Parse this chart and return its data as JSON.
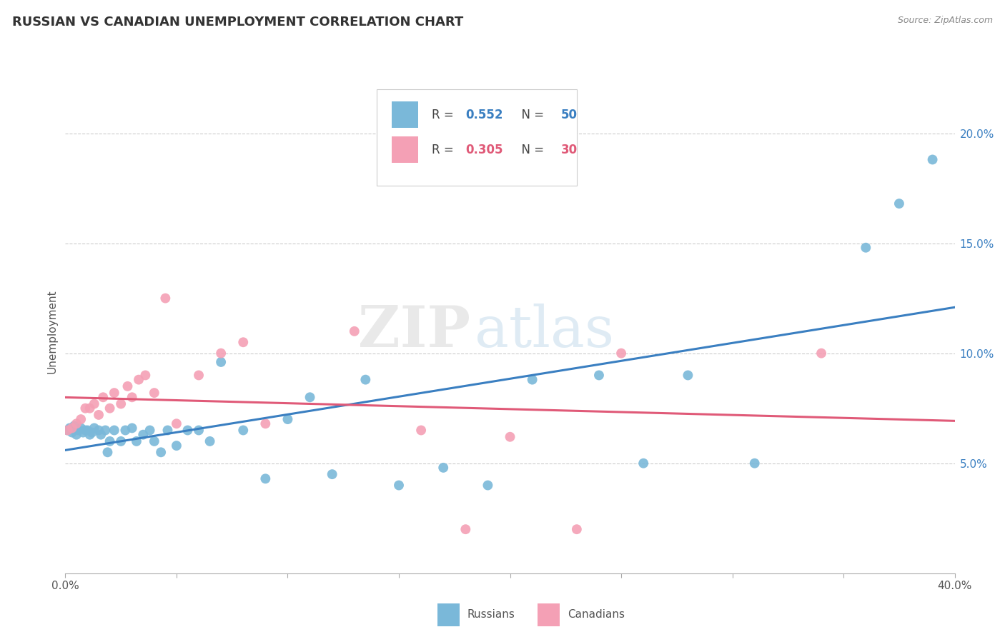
{
  "title": "RUSSIAN VS CANADIAN UNEMPLOYMENT CORRELATION CHART",
  "source": "Source: ZipAtlas.com",
  "ylabel": "Unemployment",
  "xlim": [
    0.0,
    0.4
  ],
  "ylim": [
    0.0,
    0.22
  ],
  "russian_color": "#7ab8d9",
  "canadian_color": "#f4a0b5",
  "russian_line_color": "#3a7fc1",
  "canadian_line_color": "#e05a78",
  "watermark_zip": "ZIP",
  "watermark_atlas": "atlas",
  "legend_r1": "0.552",
  "legend_n1": "50",
  "legend_r2": "0.305",
  "legend_n2": "30",
  "russians_x": [
    0.001,
    0.002,
    0.003,
    0.004,
    0.005,
    0.006,
    0.007,
    0.008,
    0.009,
    0.01,
    0.011,
    0.012,
    0.013,
    0.015,
    0.016,
    0.018,
    0.019,
    0.02,
    0.022,
    0.025,
    0.027,
    0.03,
    0.032,
    0.035,
    0.038,
    0.04,
    0.043,
    0.046,
    0.05,
    0.055,
    0.06,
    0.065,
    0.07,
    0.08,
    0.09,
    0.1,
    0.11,
    0.12,
    0.135,
    0.15,
    0.17,
    0.19,
    0.21,
    0.24,
    0.26,
    0.28,
    0.31,
    0.36,
    0.375,
    0.39
  ],
  "russians_y": [
    0.065,
    0.066,
    0.064,
    0.067,
    0.063,
    0.065,
    0.066,
    0.064,
    0.065,
    0.065,
    0.063,
    0.064,
    0.066,
    0.065,
    0.063,
    0.065,
    0.055,
    0.06,
    0.065,
    0.06,
    0.065,
    0.066,
    0.06,
    0.063,
    0.065,
    0.06,
    0.055,
    0.065,
    0.058,
    0.065,
    0.065,
    0.06,
    0.096,
    0.065,
    0.043,
    0.07,
    0.08,
    0.045,
    0.088,
    0.04,
    0.048,
    0.04,
    0.088,
    0.09,
    0.05,
    0.09,
    0.05,
    0.148,
    0.168,
    0.188
  ],
  "canadians_x": [
    0.001,
    0.003,
    0.005,
    0.007,
    0.009,
    0.011,
    0.013,
    0.015,
    0.017,
    0.02,
    0.022,
    0.025,
    0.028,
    0.03,
    0.033,
    0.036,
    0.04,
    0.045,
    0.05,
    0.06,
    0.07,
    0.08,
    0.09,
    0.13,
    0.16,
    0.18,
    0.2,
    0.23,
    0.25,
    0.34
  ],
  "canadians_y": [
    0.065,
    0.066,
    0.068,
    0.07,
    0.075,
    0.075,
    0.077,
    0.072,
    0.08,
    0.075,
    0.082,
    0.077,
    0.085,
    0.08,
    0.088,
    0.09,
    0.082,
    0.125,
    0.068,
    0.09,
    0.1,
    0.105,
    0.068,
    0.11,
    0.065,
    0.02,
    0.062,
    0.02,
    0.1,
    0.1
  ],
  "background_color": "#ffffff",
  "grid_color": "#cccccc"
}
